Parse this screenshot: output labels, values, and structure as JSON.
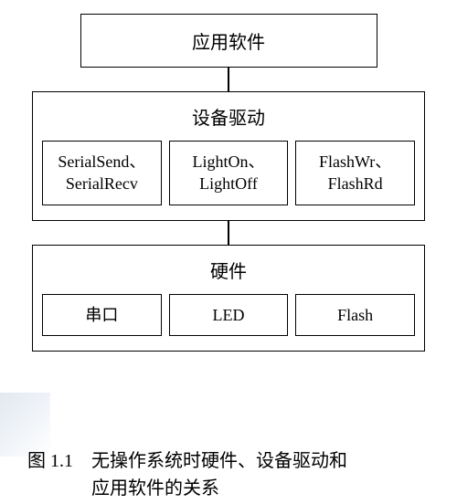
{
  "layers": {
    "top": {
      "title": "应用软件"
    },
    "middle": {
      "title": "设备驱动",
      "boxes": [
        {
          "line1": "SerialSend、",
          "line2": "SerialRecv"
        },
        {
          "line1": "LightOn、",
          "line2": "LightOff"
        },
        {
          "line1": "FlashWr、",
          "line2": "FlashRd"
        }
      ]
    },
    "bottom": {
      "title": "硬件",
      "boxes": [
        {
          "label": "串口"
        },
        {
          "label": "LED"
        },
        {
          "label": "Flash"
        }
      ]
    }
  },
  "caption": {
    "prefix": "图 1.1",
    "line1": "无操作系统时硬件、设备驱动和",
    "line2": "应用软件的关系"
  },
  "style": {
    "border_color": "#000000",
    "background_color": "#ffffff",
    "title_fontsize": 20,
    "box_fontsize": 18,
    "caption_fontsize": 20,
    "connector_height": 26,
    "diagram_width": 430,
    "top_layer_width": 325
  }
}
